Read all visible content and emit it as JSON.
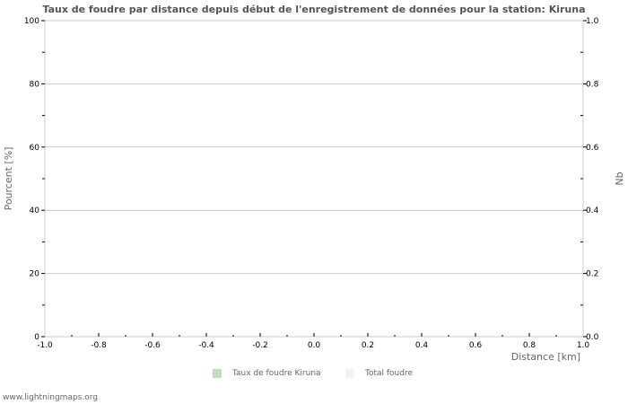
{
  "chart_data": {
    "type": "bar",
    "title": "Taux de foudre par distance depuis début de l'enregistrement de données pour la station: Kiruna",
    "xlabel": "Distance   [km]",
    "ylabel": "Pourcent   [%]",
    "ylabel_right": "Nb",
    "xlim": [
      -1.0,
      1.0
    ],
    "ylim": [
      0,
      100
    ],
    "ylim_right": [
      0.0,
      1.0
    ],
    "x_ticks": [
      "-1.0",
      "-0.8",
      "-0.6",
      "-0.4",
      "-0.2",
      "0.0",
      "0.2",
      "0.4",
      "0.6",
      "0.8",
      "1.0"
    ],
    "y_ticks": [
      "0",
      "20",
      "40",
      "60",
      "80",
      "100"
    ],
    "y_ticks_right": [
      "0.0",
      "0.2",
      "0.4",
      "0.6",
      "0.8",
      "1.0"
    ],
    "grid": true,
    "legend_position": "bottom",
    "series": [
      {
        "name": "Taux de foudre Kiruna",
        "color": "#b9e0b9",
        "values": []
      },
      {
        "name": "Total foudre",
        "color": "#f0f0fa",
        "values": []
      }
    ]
  },
  "legend": {
    "items": [
      {
        "label": "Taux de foudre Kiruna",
        "color": "#b9e0b9"
      },
      {
        "label": "Total foudre",
        "color": "#f0f0fa"
      }
    ]
  },
  "footer": {
    "text": "www.lightningmaps.org"
  }
}
